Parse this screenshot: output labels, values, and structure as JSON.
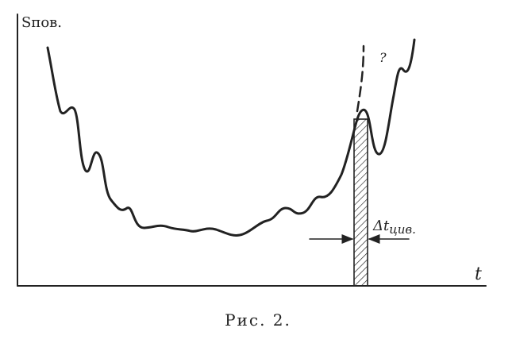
{
  "figure": {
    "y_axis_label": "Sпов.",
    "x_axis_label": "t",
    "question_mark": "?",
    "interval_label": "Δt",
    "interval_label_subscript": "цив.",
    "caption": "Рис. 2."
  }
}
